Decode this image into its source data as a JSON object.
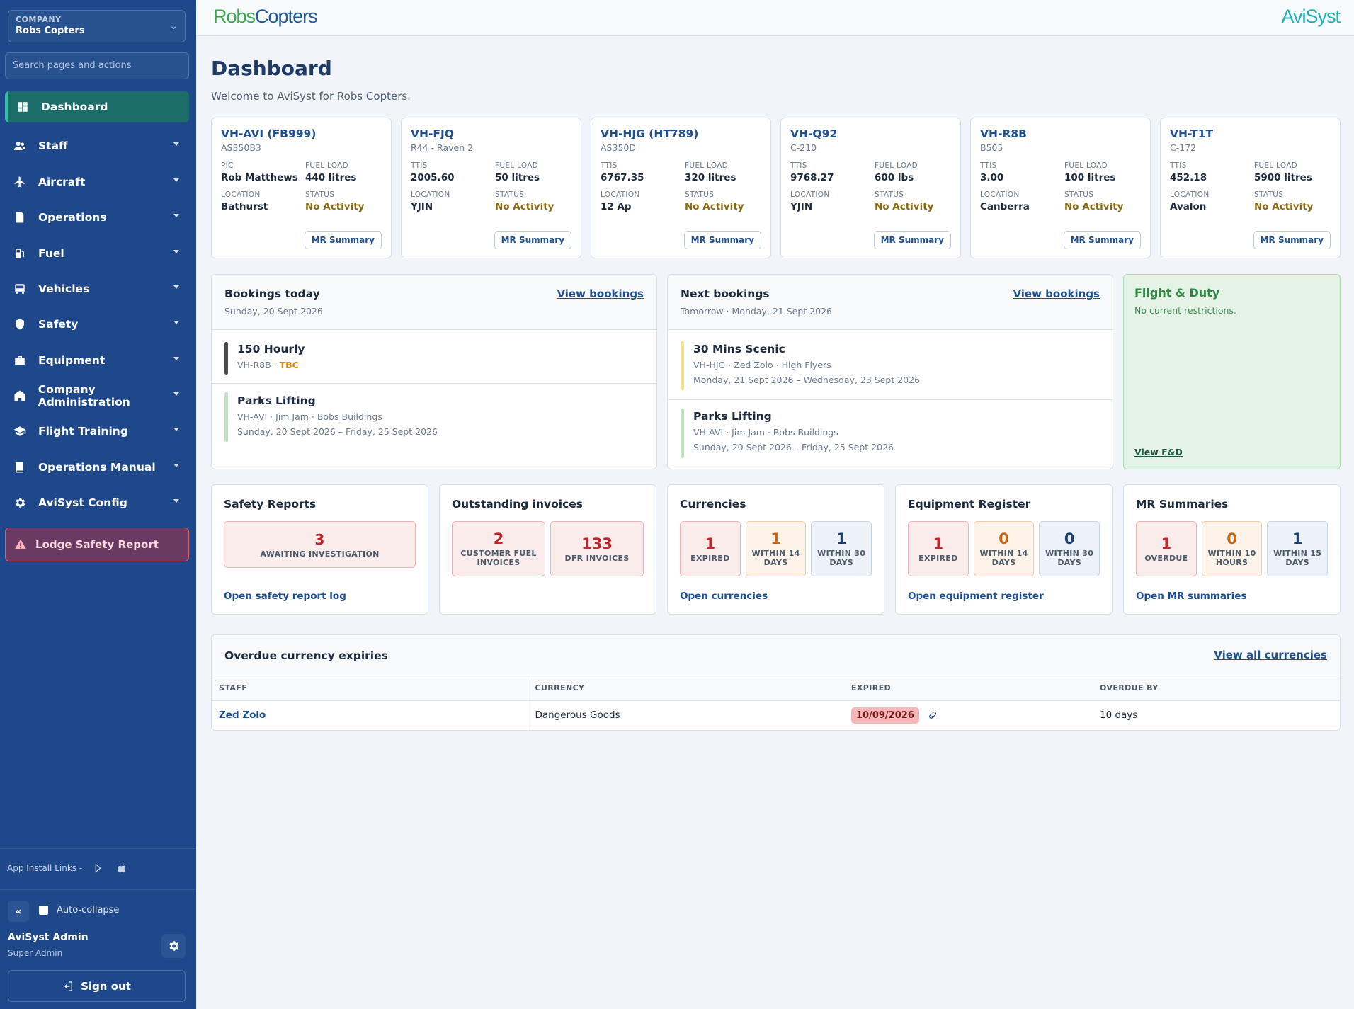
{
  "sidebar": {
    "company_label": "COMPANY",
    "company_name": "Robs Copters",
    "search_placeholder": "Search pages and actions",
    "nav": [
      {
        "label": "Dashboard",
        "icon": "dashboard-icon"
      },
      {
        "label": "Staff",
        "icon": "people-icon"
      },
      {
        "label": "Aircraft",
        "icon": "plane-icon"
      },
      {
        "label": "Operations",
        "icon": "document-icon"
      },
      {
        "label": "Fuel",
        "icon": "fuel-pump-icon"
      },
      {
        "label": "Vehicles",
        "icon": "vehicle-icon"
      },
      {
        "label": "Safety",
        "icon": "shield-icon"
      },
      {
        "label": "Equipment",
        "icon": "toolbox-icon"
      },
      {
        "label": "Company Administration",
        "icon": "building-icon"
      },
      {
        "label": "Flight Training",
        "icon": "graduation-cap-icon"
      },
      {
        "label": "Operations Manual",
        "icon": "book-icon"
      },
      {
        "label": "AviSyst Config",
        "icon": "gear-icon"
      }
    ],
    "lodge_label": "Lodge Safety Report",
    "app_links_label": "App Install Links -",
    "collapse_label": "«",
    "autocollapse_label": "Auto-collapse",
    "user_name": "AviSyst Admin",
    "user_role": "Super Admin",
    "signout_label": "Sign out"
  },
  "topbar": {
    "brand_part1": "Robs",
    "brand_part2": "Copters",
    "product": "AviSyst"
  },
  "page": {
    "title": "Dashboard",
    "welcome": "Welcome to AviSyst for Robs Copters."
  },
  "aircraft": [
    {
      "reg": "VH-AVI (FB999)",
      "type": "AS350B3",
      "k1": "PIC",
      "v1": "Rob Matthews",
      "k2": "FUEL LOAD",
      "v2": "440 litres",
      "k3": "LOCATION",
      "v3": "Bathurst",
      "k4": "STATUS",
      "v4": "No Activity",
      "btn": "MR Summary"
    },
    {
      "reg": "VH-FJQ",
      "type": "R44 - Raven 2",
      "k1": "TTIS",
      "v1": "2005.60",
      "k2": "FUEL LOAD",
      "v2": "50 litres",
      "k3": "LOCATION",
      "v3": "YJIN",
      "k4": "STATUS",
      "v4": "No Activity",
      "btn": "MR Summary"
    },
    {
      "reg": "VH-HJG (HT789)",
      "type": "AS350D",
      "k1": "TTIS",
      "v1": "6767.35",
      "k2": "FUEL LOAD",
      "v2": "320 litres",
      "k3": "LOCATION",
      "v3": "12 Ap",
      "k4": "STATUS",
      "v4": "No Activity",
      "btn": "MR Summary"
    },
    {
      "reg": "VH-Q92",
      "type": "C-210",
      "k1": "TTIS",
      "v1": "9768.27",
      "k2": "FUEL LOAD",
      "v2": "600 lbs",
      "k3": "LOCATION",
      "v3": "YJIN",
      "k4": "STATUS",
      "v4": "No Activity",
      "btn": "MR Summary"
    },
    {
      "reg": "VH-R8B",
      "type": "B505",
      "k1": "TTIS",
      "v1": "3.00",
      "k2": "FUEL LOAD",
      "v2": "100 litres",
      "k3": "LOCATION",
      "v3": "Canberra",
      "k4": "STATUS",
      "v4": "No Activity",
      "btn": "MR Summary"
    },
    {
      "reg": "VH-T1T",
      "type": "C-172",
      "k1": "TTIS",
      "v1": "452.18",
      "k2": "FUEL LOAD",
      "v2": "5900 litres",
      "k3": "LOCATION",
      "v3": "Avalon",
      "k4": "STATUS",
      "v4": "No Activity",
      "btn": "MR Summary"
    }
  ],
  "bookings_today": {
    "title": "Bookings today",
    "date": "Sunday, 20 Sept 2026",
    "view": "View bookings",
    "items": [
      {
        "title": "150 Hourly",
        "sub": "VH-R8B · ",
        "tag": "TBC",
        "dates": "",
        "color": "#4a4a4a"
      },
      {
        "title": "Parks Lifting",
        "sub": "VH-AVI · Jim Jam · Bobs Buildings",
        "dates": "Sunday, 20 Sept 2026 – Friday, 25 Sept 2026",
        "color": "#bfe3bf"
      }
    ]
  },
  "next_bookings": {
    "title": "Next bookings",
    "date": "Tomorrow · Monday, 21 Sept 2026",
    "view": "View bookings",
    "items": [
      {
        "title": "30 Mins Scenic",
        "sub": "VH-HJG · Zed Zolo · High Flyers",
        "dates": "Monday, 21 Sept 2026 – Wednesday, 23 Sept 2026",
        "color": "#f5e08a"
      },
      {
        "title": "Parks Lifting",
        "sub": "VH-AVI · Jim Jam · Bobs Buildings",
        "dates": "Sunday, 20 Sept 2026 – Friday, 25 Sept 2026",
        "color": "#bfe3bf"
      }
    ]
  },
  "flight_duty": {
    "title": "Flight & Duty",
    "status": "No current restrictions.",
    "link": "View F&D"
  },
  "summaries": [
    {
      "title": "Safety Reports",
      "link": "Open safety report log",
      "boxes": [
        {
          "n": "3",
          "c": "AWAITING INVESTIGATION",
          "tone": "red"
        }
      ]
    },
    {
      "title": "Outstanding invoices",
      "link": "",
      "boxes": [
        {
          "n": "2",
          "c": "CUSTOMER FUEL INVOICES",
          "tone": "red"
        },
        {
          "n": "133",
          "c": "DFR INVOICES",
          "tone": "red"
        }
      ]
    },
    {
      "title": "Currencies",
      "link": "Open currencies",
      "boxes": [
        {
          "n": "1",
          "c": "EXPIRED",
          "tone": "red"
        },
        {
          "n": "1",
          "c": "WITHIN 14 DAYS",
          "tone": "org"
        },
        {
          "n": "1",
          "c": "WITHIN 30 DAYS",
          "tone": "blu"
        }
      ]
    },
    {
      "title": "Equipment Register",
      "link": "Open equipment register",
      "boxes": [
        {
          "n": "1",
          "c": "EXPIRED",
          "tone": "red"
        },
        {
          "n": "0",
          "c": "WITHIN 14 DAYS",
          "tone": "org"
        },
        {
          "n": "0",
          "c": "WITHIN 30 DAYS",
          "tone": "blu"
        }
      ]
    },
    {
      "title": "MR Summaries",
      "link": "Open MR summaries",
      "boxes": [
        {
          "n": "1",
          "c": "OVERDUE",
          "tone": "red"
        },
        {
          "n": "0",
          "c": "WITHIN 10 HOURS",
          "tone": "org"
        },
        {
          "n": "1",
          "c": "WITHIN 15 DAYS",
          "tone": "blu"
        }
      ]
    }
  ],
  "overdue": {
    "title": "Overdue currency expiries",
    "view": "View all currencies",
    "columns": [
      "STAFF",
      "CURRENCY",
      "EXPIRED",
      "OVERDUE BY"
    ],
    "rows": [
      {
        "staff": "Zed Zolo",
        "currency": "Dangerous Goods",
        "expired": "10/09/2026",
        "overdue": "10 days"
      }
    ]
  }
}
